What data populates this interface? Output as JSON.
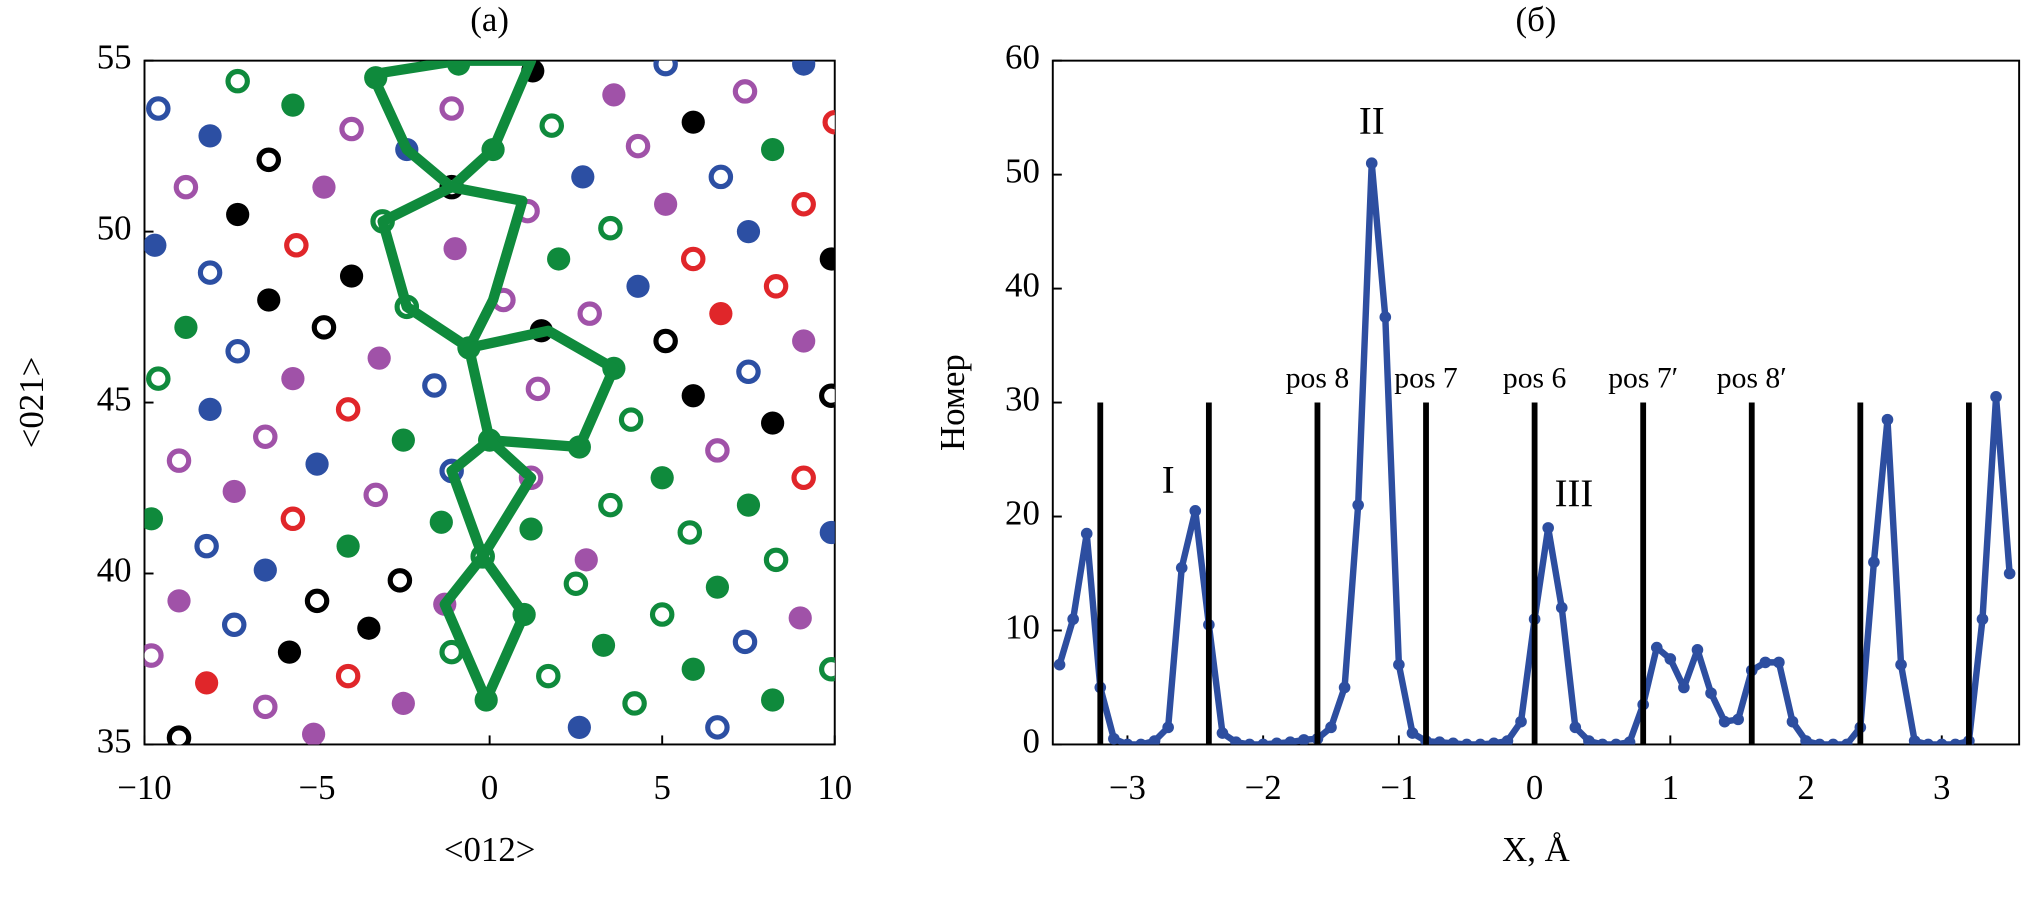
{
  "chart_data": [
    {
      "type": "scatter",
      "title": "(a)",
      "x_label": "<012>",
      "y_label": "<021>",
      "xlim": [
        -10,
        10
      ],
      "ylim": [
        35,
        55
      ],
      "xticks": [
        {
          "value": -10,
          "label": "−10"
        },
        {
          "value": -5,
          "label": "−5"
        },
        0,
        5,
        10
      ],
      "yticks": [
        35,
        40,
        45,
        50,
        55
      ],
      "series": [
        {
          "color": "#2c4fa3",
          "filled": true,
          "x": [
            -8.1,
            -9.7,
            -8.1,
            -5.0,
            -6.5,
            -2.4,
            9.1,
            2.7,
            7.5,
            4.3,
            9.9,
            2.6
          ],
          "y": [
            52.8,
            49.6,
            44.8,
            43.2,
            40.1,
            52.4,
            54.9,
            51.6,
            50.0,
            48.4,
            41.2,
            35.5
          ]
        },
        {
          "color": "#2c4fa3",
          "filled": false,
          "x": [
            -9.6,
            -8.1,
            -7.3,
            -8.2,
            -7.4,
            -1.6,
            -1.1,
            5.1,
            6.7,
            7.5,
            7.4,
            6.6
          ],
          "y": [
            53.6,
            48.8,
            46.5,
            40.8,
            38.5,
            45.5,
            43.0,
            54.9,
            51.6,
            45.9,
            38.0,
            35.5
          ]
        },
        {
          "color": "#0f8a3c",
          "filled": true,
          "x": [
            -5.7,
            -8.8,
            -2.5,
            -9.8,
            -4.1,
            -1.4,
            -0.1,
            1.0,
            0.0,
            -0.6,
            0.1,
            -3.3,
            -0.9,
            8.2,
            2.0,
            3.6,
            2.6,
            5.0,
            7.5,
            1.2,
            6.6,
            3.3,
            5.9,
            8.2
          ],
          "y": [
            53.7,
            47.2,
            43.9,
            41.6,
            40.8,
            41.5,
            36.3,
            38.8,
            43.9,
            46.6,
            52.4,
            54.5,
            54.9,
            52.4,
            49.2,
            46.0,
            43.7,
            42.8,
            42.0,
            41.3,
            39.6,
            37.9,
            37.2,
            36.3
          ]
        },
        {
          "color": "#0f8a3c",
          "filled": false,
          "x": [
            -7.3,
            -9.6,
            -3.1,
            -2.4,
            -0.2,
            -1.1,
            1.8,
            3.5,
            4.1,
            3.5,
            5.8,
            8.3,
            2.5,
            5.0,
            1.7,
            9.9,
            4.2
          ],
          "y": [
            54.4,
            45.7,
            50.3,
            47.8,
            40.5,
            37.7,
            53.1,
            50.1,
            44.5,
            42.0,
            41.2,
            40.4,
            39.7,
            38.8,
            37.0,
            37.2,
            36.2
          ]
        },
        {
          "color": "#a052a8",
          "filled": true,
          "x": [
            -4.8,
            -5.7,
            -3.2,
            -7.4,
            -9.0,
            -2.5,
            -5.1,
            -1.0,
            -1.3,
            3.6,
            5.1,
            9.1,
            2.8,
            9.0
          ],
          "y": [
            51.3,
            45.7,
            46.3,
            42.4,
            39.2,
            36.2,
            35.3,
            49.5,
            39.1,
            54.0,
            50.8,
            46.8,
            40.4,
            38.7
          ]
        },
        {
          "color": "#a052a8",
          "filled": false,
          "x": [
            -8.8,
            -4.0,
            -6.5,
            -9.0,
            -3.3,
            -9.8,
            -6.5,
            -1.1,
            7.4,
            4.3,
            1.1,
            0.4,
            2.9,
            1.4,
            6.6,
            1.2
          ],
          "y": [
            51.3,
            53.0,
            44.0,
            43.3,
            42.3,
            37.6,
            36.1,
            53.6,
            54.1,
            52.5,
            50.6,
            48.0,
            47.6,
            45.4,
            43.6,
            42.8
          ]
        },
        {
          "color": "#e0262a",
          "filled": true,
          "x": [
            -8.2,
            6.7
          ],
          "y": [
            36.8,
            47.6
          ]
        },
        {
          "color": "#e0262a",
          "filled": false,
          "x": [
            -5.6,
            -4.1,
            -5.7,
            -4.1,
            10.0,
            9.1,
            5.9,
            8.3,
            9.1
          ],
          "y": [
            49.6,
            44.8,
            41.6,
            37.0,
            53.2,
            50.8,
            49.2,
            48.4,
            42.8
          ]
        },
        {
          "color": "#000000",
          "filled": true,
          "x": [
            -7.3,
            -4.0,
            -6.4,
            -3.5,
            -5.8,
            1.25,
            5.9,
            9.9,
            1.5,
            5.9,
            8.2
          ],
          "y": [
            50.5,
            48.7,
            48.0,
            38.4,
            37.7,
            54.7,
            53.2,
            49.2,
            47.1,
            45.2,
            44.4
          ]
        },
        {
          "color": "#000000",
          "filled": false,
          "x": [
            -6.4,
            -4.8,
            -2.6,
            -5.0,
            -9.0,
            -1.1,
            5.1,
            9.9
          ],
          "y": [
            52.1,
            47.2,
            39.8,
            39.2,
            35.2,
            51.3,
            46.8,
            45.2
          ]
        }
      ],
      "lines": [
        {
          "color": "#0f8a3c",
          "x": [
            -3.4,
            -0.9,
            1.2,
            0.1,
            -1.1,
            -2.4,
            -3.4
          ],
          "y": [
            54.6,
            55.0,
            55.0,
            52.4,
            51.3,
            52.4,
            54.6
          ]
        },
        {
          "color": "#0f8a3c",
          "x": [
            0.95,
            -1.1,
            -3.1,
            -2.4,
            -0.6,
            0.1,
            0.95
          ],
          "y": [
            50.9,
            51.3,
            50.3,
            47.8,
            46.6,
            48.0,
            50.9
          ]
        },
        {
          "color": "#0f8a3c",
          "x": [
            -0.6,
            1.7,
            3.6,
            2.6,
            0.0,
            -0.6
          ],
          "y": [
            46.6,
            47.1,
            46.0,
            43.7,
            43.9,
            46.6
          ]
        },
        {
          "color": "#0f8a3c",
          "x": [
            0.0,
            -1.1,
            -0.2,
            1.2,
            0.0
          ],
          "y": [
            43.9,
            43.0,
            40.5,
            42.8,
            43.9
          ]
        },
        {
          "color": "#0f8a3c",
          "x": [
            -0.2,
            -1.3,
            -0.1,
            1.0,
            -0.2
          ],
          "y": [
            40.5,
            39.1,
            36.3,
            38.8,
            40.5
          ]
        }
      ]
    },
    {
      "type": "line",
      "title": "(б)",
      "x_label": "X, Å",
      "y_label": "Номер",
      "xlim": [
        -3.55,
        3.57
      ],
      "ylim": [
        0,
        60
      ],
      "xticks": [
        {
          "value": -3,
          "label": "−3"
        },
        {
          "value": -2,
          "label": "−2"
        },
        {
          "value": -1,
          "label": "−1"
        },
        0,
        1,
        2,
        3
      ],
      "yticks": [
        0,
        10,
        20,
        30,
        40,
        50,
        60
      ],
      "color": "#2d4ea0",
      "x": [
        -3.5,
        -3.4,
        -3.3,
        -3.2,
        -3.1,
        -3.0,
        -2.9,
        -2.8,
        -2.7,
        -2.6,
        -2.5,
        -2.4,
        -2.3,
        -2.2,
        -2.1,
        -2.0,
        -1.9,
        -1.8,
        -1.7,
        -1.6,
        -1.5,
        -1.4,
        -1.3,
        -1.2,
        -1.1,
        -1.0,
        -0.9,
        -0.8,
        -0.7,
        -0.6,
        -0.5,
        -0.4,
        -0.3,
        -0.2,
        -0.1,
        0.0,
        0.1,
        0.2,
        0.3,
        0.4,
        0.5,
        0.6,
        0.7,
        0.8,
        0.9,
        1.0,
        1.1,
        1.2,
        1.3,
        1.4,
        1.5,
        1.6,
        1.7,
        1.8,
        1.9,
        2.0,
        2.1,
        2.2,
        2.3,
        2.4,
        2.5,
        2.6,
        2.7,
        2.8,
        2.9,
        3.0,
        3.1,
        3.2,
        3.3,
        3.4,
        3.5
      ],
      "values": [
        7,
        11,
        18.5,
        5,
        0.5,
        0,
        0,
        0.3,
        1.5,
        15.5,
        20.5,
        10.5,
        1,
        0.2,
        0,
        0,
        0.1,
        0.2,
        0.4,
        0.5,
        1.5,
        5,
        21,
        51,
        37.5,
        7,
        1,
        0.3,
        0.2,
        0.1,
        0,
        0,
        0.1,
        0.3,
        2,
        11,
        19,
        12,
        1.5,
        0.3,
        0,
        0,
        0.2,
        3.5,
        8.5,
        7.5,
        5,
        8.3,
        4.5,
        2,
        2.2,
        6.5,
        7.2,
        7.2,
        2,
        0.3,
        0,
        0,
        0,
        1.5,
        16,
        28.5,
        7,
        0.3,
        0,
        0,
        0,
        0.3,
        11,
        30.5,
        15
      ],
      "markers": {
        "x": [
          -3.2,
          -2.4,
          -1.6,
          -0.8,
          0,
          0.8,
          1.6,
          2.4,
          3.2
        ],
        "top": 30,
        "labels": [
          null,
          null,
          "pos 8",
          "pos 7",
          "pos 6",
          "pos 7′",
          "pos 8′",
          null,
          null
        ]
      },
      "annotations": [
        {
          "text": "I",
          "x": -2.7,
          "y": 22.9
        },
        {
          "text": "II",
          "x": -1.2,
          "y": 54.4
        },
        {
          "text": "III",
          "x": 0.29,
          "y": 21.7
        }
      ]
    }
  ]
}
